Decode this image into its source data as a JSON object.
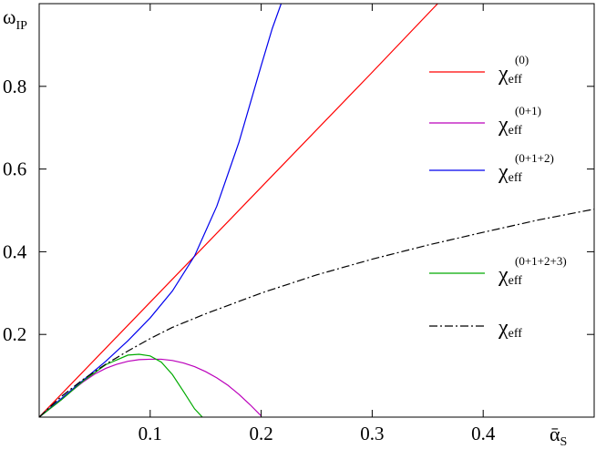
{
  "chart_data": {
    "type": "line",
    "xlabel": {
      "symbol": "ᾱ",
      "subscript": "S"
    },
    "ylabel": {
      "symbol": "ω",
      "subscript": "IP"
    },
    "xlim": [
      0,
      0.5
    ],
    "ylim": [
      0,
      1.0
    ],
    "xticks": [
      {
        "value": 0.1,
        "label": "0.1"
      },
      {
        "value": 0.2,
        "label": "0.2"
      },
      {
        "value": 0.3,
        "label": "0.3"
      },
      {
        "value": 0.4,
        "label": "0.4"
      }
    ],
    "yticks": [
      {
        "value": 0.2,
        "label": "0.2"
      },
      {
        "value": 0.4,
        "label": "0.4"
      },
      {
        "value": 0.6,
        "label": "0.6"
      },
      {
        "value": 0.8,
        "label": "0.8"
      }
    ],
    "grid": false,
    "legend_position": "right",
    "series": [
      {
        "name": {
          "symbol": "χ",
          "sub": "eff",
          "sup": "(0)"
        },
        "color": "#ff0000",
        "dash": "solid",
        "x": [
          0,
          0.1,
          0.2,
          0.3,
          0.359
        ],
        "y": [
          0,
          0.278,
          0.556,
          0.834,
          1.0
        ]
      },
      {
        "name": {
          "symbol": "χ",
          "sub": "eff",
          "sup": "(0+1)"
        },
        "color": "#bb00bb",
        "dash": "solid",
        "x": [
          0,
          0.01,
          0.02,
          0.03,
          0.04,
          0.05,
          0.06,
          0.07,
          0.08,
          0.09,
          0.1,
          0.11,
          0.12,
          0.13,
          0.14,
          0.15,
          0.16,
          0.17,
          0.18,
          0.19,
          0.2
        ],
        "y": [
          0,
          0.021,
          0.042,
          0.065,
          0.086,
          0.104,
          0.118,
          0.128,
          0.135,
          0.139,
          0.14,
          0.14,
          0.137,
          0.131,
          0.122,
          0.11,
          0.095,
          0.077,
          0.055,
          0.03,
          0.003
        ]
      },
      {
        "name": {
          "symbol": "χ",
          "sub": "eff",
          "sup": "(0+1+2)"
        },
        "color": "#0000ee",
        "dash": "solid",
        "x": [
          0,
          0.02,
          0.04,
          0.06,
          0.08,
          0.1,
          0.12,
          0.14,
          0.16,
          0.18,
          0.2,
          0.21,
          0.218
        ],
        "y": [
          0,
          0.045,
          0.09,
          0.135,
          0.185,
          0.24,
          0.305,
          0.39,
          0.51,
          0.665,
          0.85,
          0.94,
          1.0
        ]
      },
      {
        "name": {
          "symbol": "χ",
          "sub": "eff",
          "sup": "(0+1+2+3)"
        },
        "color": "#00aa00",
        "dash": "solid",
        "x": [
          0,
          0.02,
          0.04,
          0.06,
          0.08,
          0.09,
          0.1,
          0.11,
          0.12,
          0.13,
          0.14,
          0.147
        ],
        "y": [
          0,
          0.042,
          0.088,
          0.127,
          0.15,
          0.152,
          0.148,
          0.133,
          0.103,
          0.062,
          0.02,
          0.0
        ]
      },
      {
        "name": {
          "symbol": "χ",
          "sub": "eff",
          "sup": ""
        },
        "color": "#000000",
        "dash": "dashdot",
        "x": [
          0,
          0.02,
          0.04,
          0.06,
          0.08,
          0.1,
          0.12,
          0.15,
          0.2,
          0.25,
          0.3,
          0.35,
          0.4,
          0.45,
          0.5
        ],
        "y": [
          0,
          0.05,
          0.092,
          0.128,
          0.16,
          0.19,
          0.217,
          0.25,
          0.3,
          0.344,
          0.382,
          0.416,
          0.447,
          0.477,
          0.503
        ]
      }
    ]
  }
}
